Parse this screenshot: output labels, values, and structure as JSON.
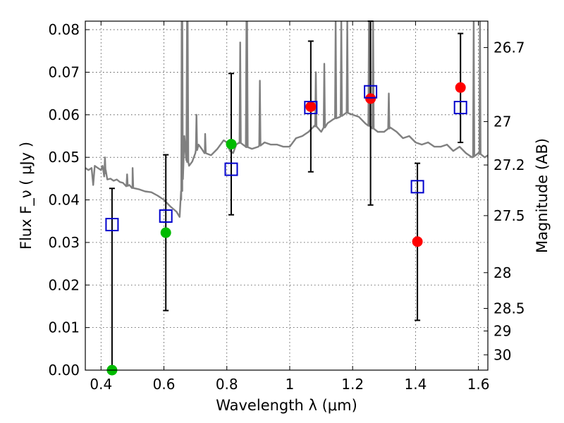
{
  "chart_data": {
    "type": "scatter",
    "title": "",
    "xlabel": "Wavelength  λ (μm)",
    "ylabel": "Flux  F_ν  ( μJy )",
    "ylabel_right": "Magnitude (AB)",
    "xlim": [
      0.35,
      1.63
    ],
    "ylim": [
      0.0,
      0.082
    ],
    "grid": true,
    "x_ticks": [
      0.4,
      0.6,
      0.8,
      1.0,
      1.2,
      1.4,
      1.6
    ],
    "x_tick_labels": [
      "0.4",
      "0.6",
      "0.8",
      "1",
      "1.2",
      "1.4",
      "1.6"
    ],
    "y_ticks": [
      0.0,
      0.01,
      0.02,
      0.03,
      0.04,
      0.05,
      0.06,
      0.07,
      0.08
    ],
    "y_tick_labels": [
      "0.00",
      "0.01",
      "0.02",
      "0.03",
      "0.04",
      "0.05",
      "0.06",
      "0.07",
      "0.08"
    ],
    "right_ticks": [
      {
        "label": "26.7",
        "flux": 0.0758
      },
      {
        "label": "27",
        "flux": 0.0584
      },
      {
        "label": "27.2",
        "flux": 0.0482
      },
      {
        "label": "27.5",
        "flux": 0.0363
      },
      {
        "label": "28",
        "flux": 0.0229
      },
      {
        "label": "28.5",
        "flux": 0.0145
      },
      {
        "label": "29",
        "flux": 0.0092
      },
      {
        "label": "30",
        "flux": 0.0036
      }
    ],
    "series": [
      {
        "kind": "spectrum",
        "color": "#808080",
        "x": [
          0.35,
          0.36,
          0.37,
          0.375,
          0.38,
          0.39,
          0.4,
          0.405,
          0.41,
          0.415,
          0.42,
          0.43,
          0.44,
          0.45,
          0.46,
          0.47,
          0.48,
          0.49,
          0.5,
          0.52,
          0.54,
          0.56,
          0.58,
          0.6,
          0.62,
          0.64,
          0.65,
          0.655,
          0.66,
          0.665,
          0.67,
          0.68,
          0.69,
          0.7,
          0.71,
          0.72,
          0.73,
          0.75,
          0.77,
          0.79,
          0.8,
          0.81,
          0.82,
          0.83,
          0.84,
          0.86,
          0.88,
          0.9,
          0.92,
          0.94,
          0.96,
          0.98,
          1.0,
          1.02,
          1.04,
          1.06,
          1.08,
          1.1,
          1.12,
          1.14,
          1.16,
          1.18,
          1.2,
          1.22,
          1.24,
          1.26,
          1.28,
          1.3,
          1.32,
          1.34,
          1.36,
          1.38,
          1.4,
          1.42,
          1.44,
          1.46,
          1.48,
          1.5,
          1.52,
          1.54,
          1.56,
          1.58,
          1.6,
          1.62,
          1.63
        ],
        "y": [
          0.0475,
          0.047,
          0.0475,
          0.0435,
          0.048,
          0.0475,
          0.047,
          0.048,
          0.0455,
          0.047,
          0.0448,
          0.045,
          0.0445,
          0.0448,
          0.0442,
          0.044,
          0.0432,
          0.0435,
          0.0428,
          0.0425,
          0.042,
          0.0418,
          0.041,
          0.04,
          0.0385,
          0.0372,
          0.036,
          0.04,
          0.047,
          0.055,
          0.05,
          0.048,
          0.049,
          0.051,
          0.053,
          0.052,
          0.051,
          0.0505,
          0.052,
          0.054,
          0.0535,
          0.0515,
          0.051,
          0.053,
          0.0535,
          0.0525,
          0.052,
          0.0525,
          0.0535,
          0.053,
          0.053,
          0.0525,
          0.0525,
          0.0545,
          0.055,
          0.056,
          0.0575,
          0.056,
          0.058,
          0.059,
          0.0595,
          0.0605,
          0.06,
          0.0595,
          0.058,
          0.057,
          0.056,
          0.056,
          0.057,
          0.056,
          0.0545,
          0.055,
          0.0535,
          0.053,
          0.0535,
          0.0525,
          0.0525,
          0.053,
          0.0515,
          0.0525,
          0.051,
          0.05,
          0.051,
          0.05,
          0.0505
        ]
      },
      {
        "kind": "model_photometry",
        "marker": "open-square",
        "color": "#0000cc",
        "x": [
          0.435,
          0.606,
          0.814,
          1.067,
          1.257,
          1.406,
          1.543
        ],
        "y": [
          0.0342,
          0.0362,
          0.0472,
          0.0617,
          0.0654,
          0.0431,
          0.0617
        ]
      },
      {
        "kind": "observed_photometry",
        "marker": "filled-circle",
        "x": [
          0.435,
          0.606,
          0.814,
          1.067,
          1.257,
          1.406,
          1.543
        ],
        "y": [
          0.0,
          0.0323,
          0.0531,
          0.0619,
          0.0638,
          0.0302,
          0.0664
        ],
        "colors": [
          "#00bb00",
          "#00bb00",
          "#00bb00",
          "#ff0000",
          "#ff0000",
          "#ff0000",
          "#ff0000"
        ],
        "err_low": [
          0.0,
          0.014,
          0.0365,
          0.0466,
          0.0388,
          0.0117,
          0.0535
        ],
        "err_high": [
          0.0427,
          0.0506,
          0.0697,
          0.0773,
          0.082,
          0.0486,
          0.0791
        ]
      }
    ],
    "spikes": [
      {
        "x": 0.4125,
        "y": 0.05
      },
      {
        "x": 0.483,
        "y": 0.046
      },
      {
        "x": 0.5005,
        "y": 0.0475
      },
      {
        "x": 0.6565,
        "y": 0.082
      },
      {
        "x": 0.6585,
        "y": 0.082
      },
      {
        "x": 0.6735,
        "y": 0.082
      },
      {
        "x": 0.6755,
        "y": 0.082
      },
      {
        "x": 0.7035,
        "y": 0.06
      },
      {
        "x": 0.731,
        "y": 0.0555
      },
      {
        "x": 0.8425,
        "y": 0.077
      },
      {
        "x": 0.8625,
        "y": 0.082
      },
      {
        "x": 0.8645,
        "y": 0.082
      },
      {
        "x": 0.905,
        "y": 0.068
      },
      {
        "x": 1.083,
        "y": 0.07
      },
      {
        "x": 1.11,
        "y": 0.072
      },
      {
        "x": 1.146,
        "y": 0.082
      },
      {
        "x": 1.164,
        "y": 0.082
      },
      {
        "x": 1.183,
        "y": 0.082
      },
      {
        "x": 1.252,
        "y": 0.082
      },
      {
        "x": 1.265,
        "y": 0.082
      },
      {
        "x": 1.315,
        "y": 0.065
      },
      {
        "x": 1.585,
        "y": 0.082
      },
      {
        "x": 1.605,
        "y": 0.082
      }
    ],
    "colors": {
      "spectrum": "#808080",
      "square": "#0000cc",
      "green": "#00bb00",
      "red": "#ff0000",
      "errorbar": "#000000"
    }
  }
}
